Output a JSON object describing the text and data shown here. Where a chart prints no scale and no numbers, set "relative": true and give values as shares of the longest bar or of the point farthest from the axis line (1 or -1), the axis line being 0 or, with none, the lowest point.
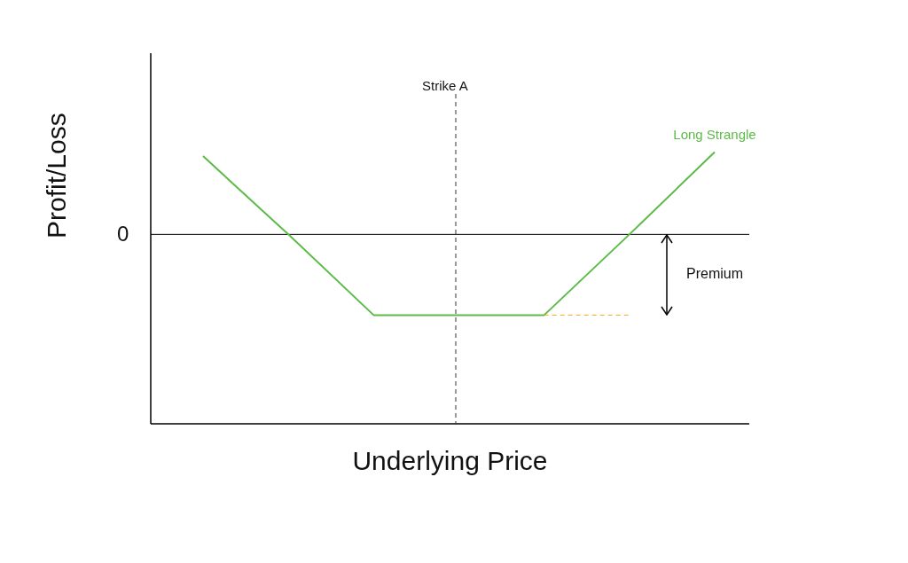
{
  "chart_data": {
    "type": "line",
    "xlabel": "Underlying Price",
    "ylabel": "Profit/Loss",
    "relative": true,
    "categories": [
      null,
      null,
      null,
      null,
      null,
      null,
      null
    ],
    "marker": "none",
    "series": [
      {
        "name": "Long Strangle",
        "color": "#5cbb47",
        "values": [
          0.95,
          0,
          -0.98,
          -0.98,
          -0.98,
          0,
          1
        ]
      },
      {
        "color": "#f5a623",
        "values": [
          null,
          null,
          null,
          null,
          -0.98,
          -0.98,
          null
        ],
        "line_style": "dashed"
      }
    ],
    "annotations": [
      "Strike A",
      "0",
      "Premium"
    ]
  }
}
